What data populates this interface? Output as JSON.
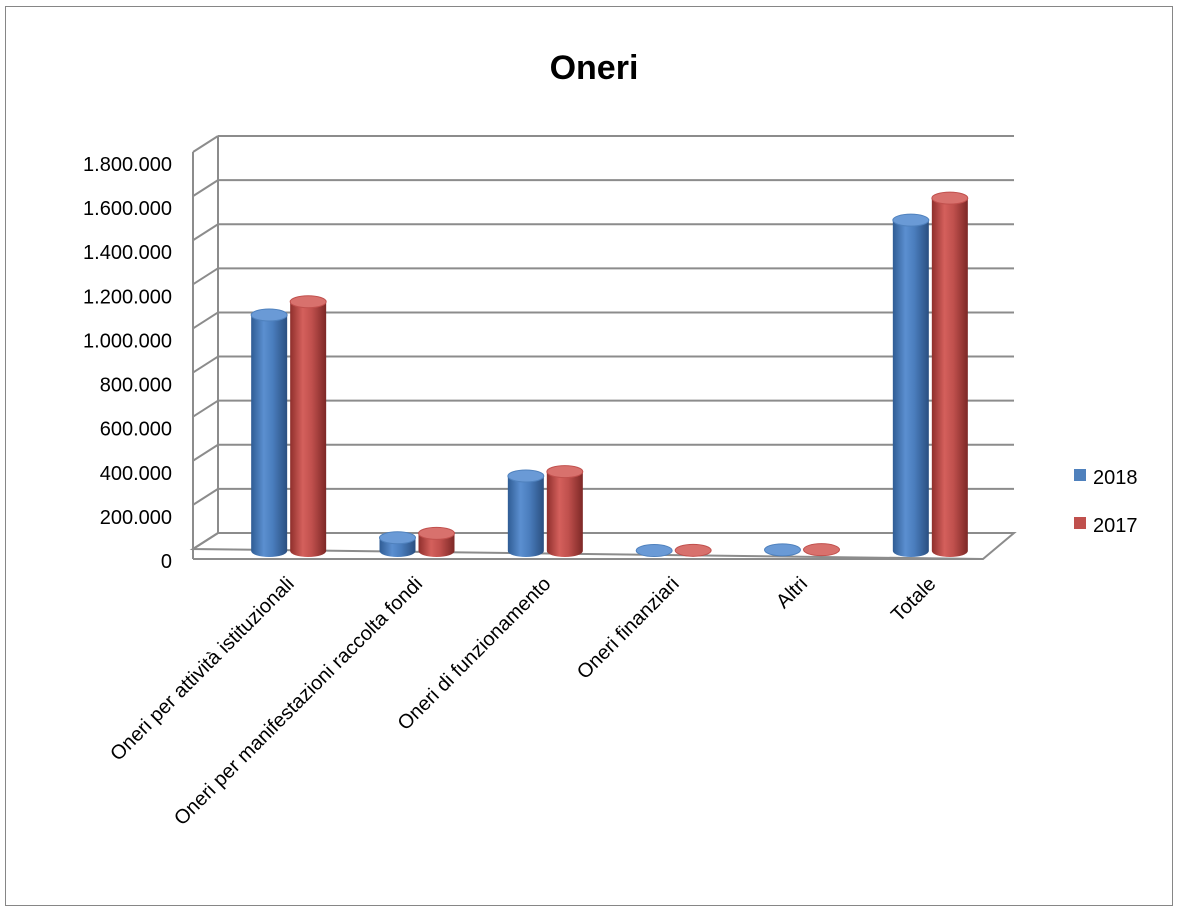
{
  "chart_data": {
    "type": "bar",
    "title": "Oneri",
    "categories": [
      "Oneri per attività istituzionali",
      "Oneri per manifestazioni raccolta fondi",
      "Oneri di funzionamento",
      "Oneri finanziari",
      "Altri",
      "Totale"
    ],
    "series": [
      {
        "name": "2018",
        "color": "#4f81bd",
        "values": [
          1070000,
          60000,
          340000,
          2000,
          5000,
          1500000
        ]
      },
      {
        "name": "2017",
        "color": "#c0504d",
        "values": [
          1130000,
          80000,
          360000,
          3000,
          6000,
          1600000
        ]
      }
    ],
    "yticks": [
      "0",
      "200.000",
      "400.000",
      "600.000",
      "800.000",
      "1.000.000",
      "1.200.000",
      "1.400.000",
      "1.600.000",
      "1.800.000"
    ],
    "ylim": [
      0,
      1800000
    ],
    "grid": true,
    "legend_position": "right",
    "style": "3d-cylinder"
  }
}
